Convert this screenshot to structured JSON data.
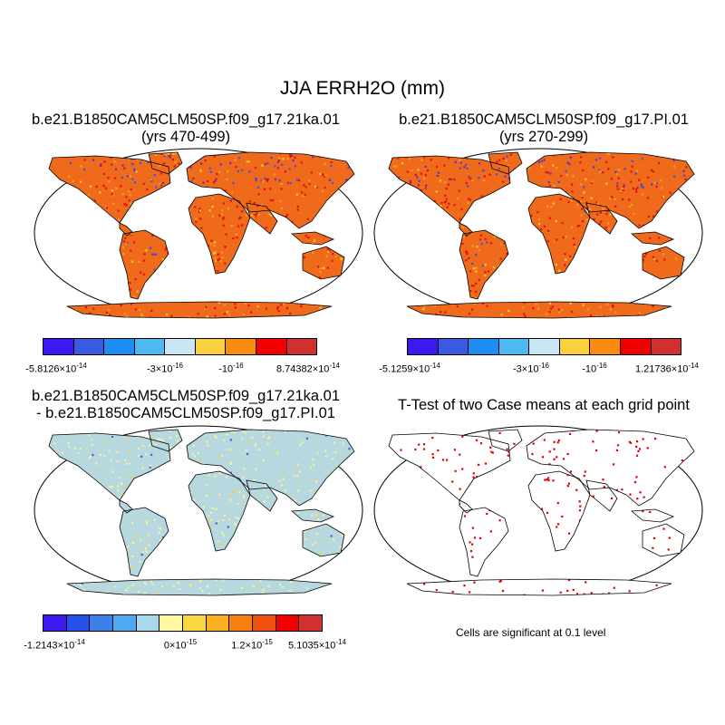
{
  "main_title": "JJA ERRH2O (mm)",
  "colors": {
    "land_base": "#f06a1c",
    "land_hot": "#e01010",
    "land_warm": "#f5a020",
    "land_yellow": "#f5d030",
    "blue": "#4050e0",
    "violet": "#5a30d0",
    "diff_base": "#b8d8e0",
    "diff_yellow": "#f5f0a0",
    "sig": "#e00000"
  },
  "panels": [
    {
      "title_line1": "b.e21.B1850CAM5CLM50SP.f09_g17.21ka.01",
      "title_line2": "(yrs 470-499)"
    },
    {
      "title_line1": "b.e21.B1850CAM5CLM50SP.f09_g17.PI.01",
      "title_line2": "(yrs 270-299)"
    },
    {
      "title_line1": "b.e21.B1850CAM5CLM50SP.f09_g17.21ka.01",
      "title_line2": "- b.e21.B1850CAM5CLM50SP.f09_g17.PI.01"
    },
    {
      "title_line1": "T-Test of two Case means at each grid point"
    }
  ],
  "colorbars": [
    {
      "colors": [
        "#3a1aef",
        "#3a5ae0",
        "#1e8cf0",
        "#50b8f0",
        "#c8e6f4",
        "#f8d040",
        "#f88c10",
        "#f00000",
        "#d03030"
      ],
      "labels": [
        "-5.8126",
        "-3",
        "-10",
        "8.74382"
      ],
      "exponents": [
        "-14",
        "-16",
        "-16",
        "-14"
      ]
    },
    {
      "colors": [
        "#3a1aef",
        "#3a5ae0",
        "#1e8cf0",
        "#50b8f0",
        "#c8e6f4",
        "#f8d040",
        "#f88c10",
        "#f00000",
        "#d03030"
      ],
      "labels": [
        "-5.1259",
        "-3",
        "-10",
        "1.21736"
      ],
      "exponents": [
        "-14",
        "-16",
        "-16",
        "-14"
      ]
    },
    {
      "colors": [
        "#3a1aef",
        "#2850e8",
        "#3c80ec",
        "#50a8f0",
        "#a8d8f0",
        "#fff8a0",
        "#f8d840",
        "#f8b020",
        "#f88010",
        "#f05010",
        "#f00000",
        "#d03030"
      ],
      "labels": [
        "-1.2143",
        "0",
        "1.2",
        "5.1035"
      ],
      "exponents": [
        "-14",
        "-15",
        "-15",
        "-14"
      ]
    }
  ],
  "times_symbol": "×10",
  "significance_note": "Cells are significant at 0.1 level"
}
